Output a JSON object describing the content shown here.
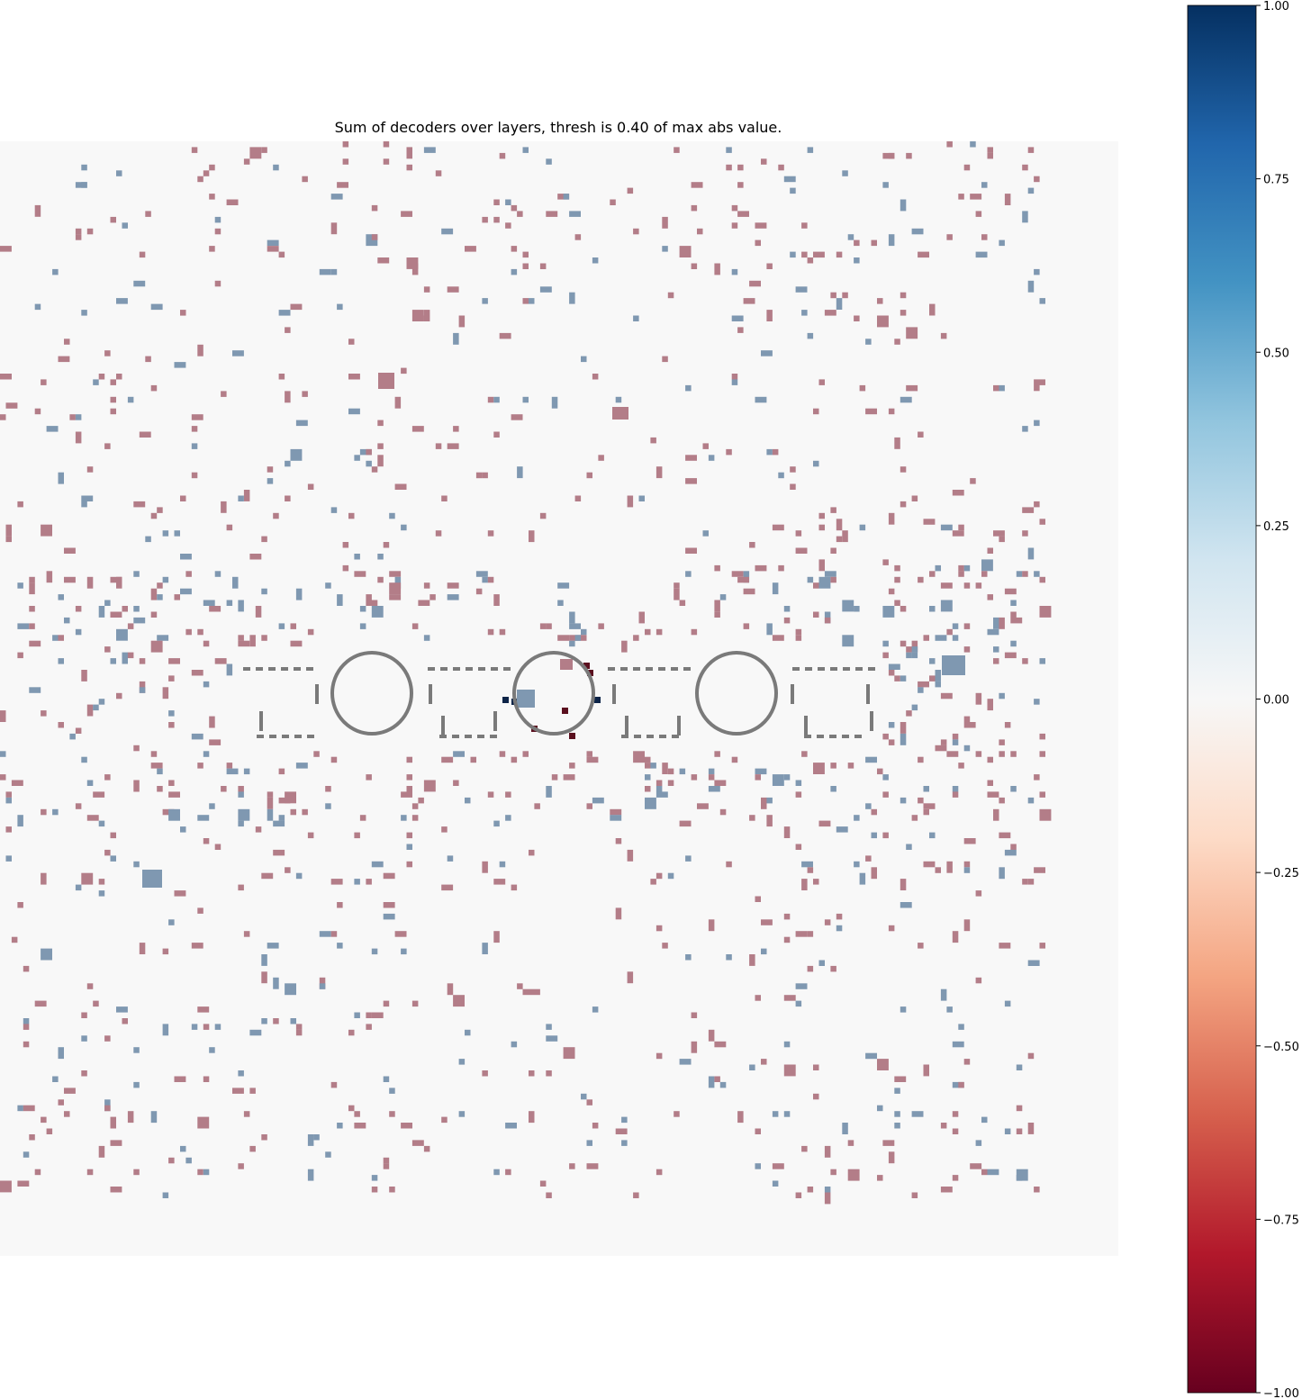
{
  "chart_data": {
    "type": "heatmap",
    "title": "Sum of decoders over layers, thresh is 0.40 of max abs value.",
    "colormap": "RdBu",
    "background_color": "#f8f8f8",
    "negative_masked_color": "#b37d88",
    "positive_masked_color": "#7f98b1",
    "overlay_color": "#7a7a7a",
    "strong_negative_color": "#5a0f1e",
    "strong_positive_color": "#0d2448",
    "threshold_fraction": 0.4,
    "grid_on": false,
    "colorbar": {
      "range": [
        -1.0,
        1.0
      ],
      "ticks": [
        1.0,
        0.75,
        0.5,
        0.25,
        0.0,
        -0.25,
        -0.5,
        -0.75,
        -1.0
      ],
      "tick_labels": [
        "1.00",
        "0.75",
        "0.50",
        "0.25",
        "0.00",
        "−0.25",
        "−0.50",
        "−0.75",
        "−1.00"
      ],
      "placement": "right"
    }
  }
}
